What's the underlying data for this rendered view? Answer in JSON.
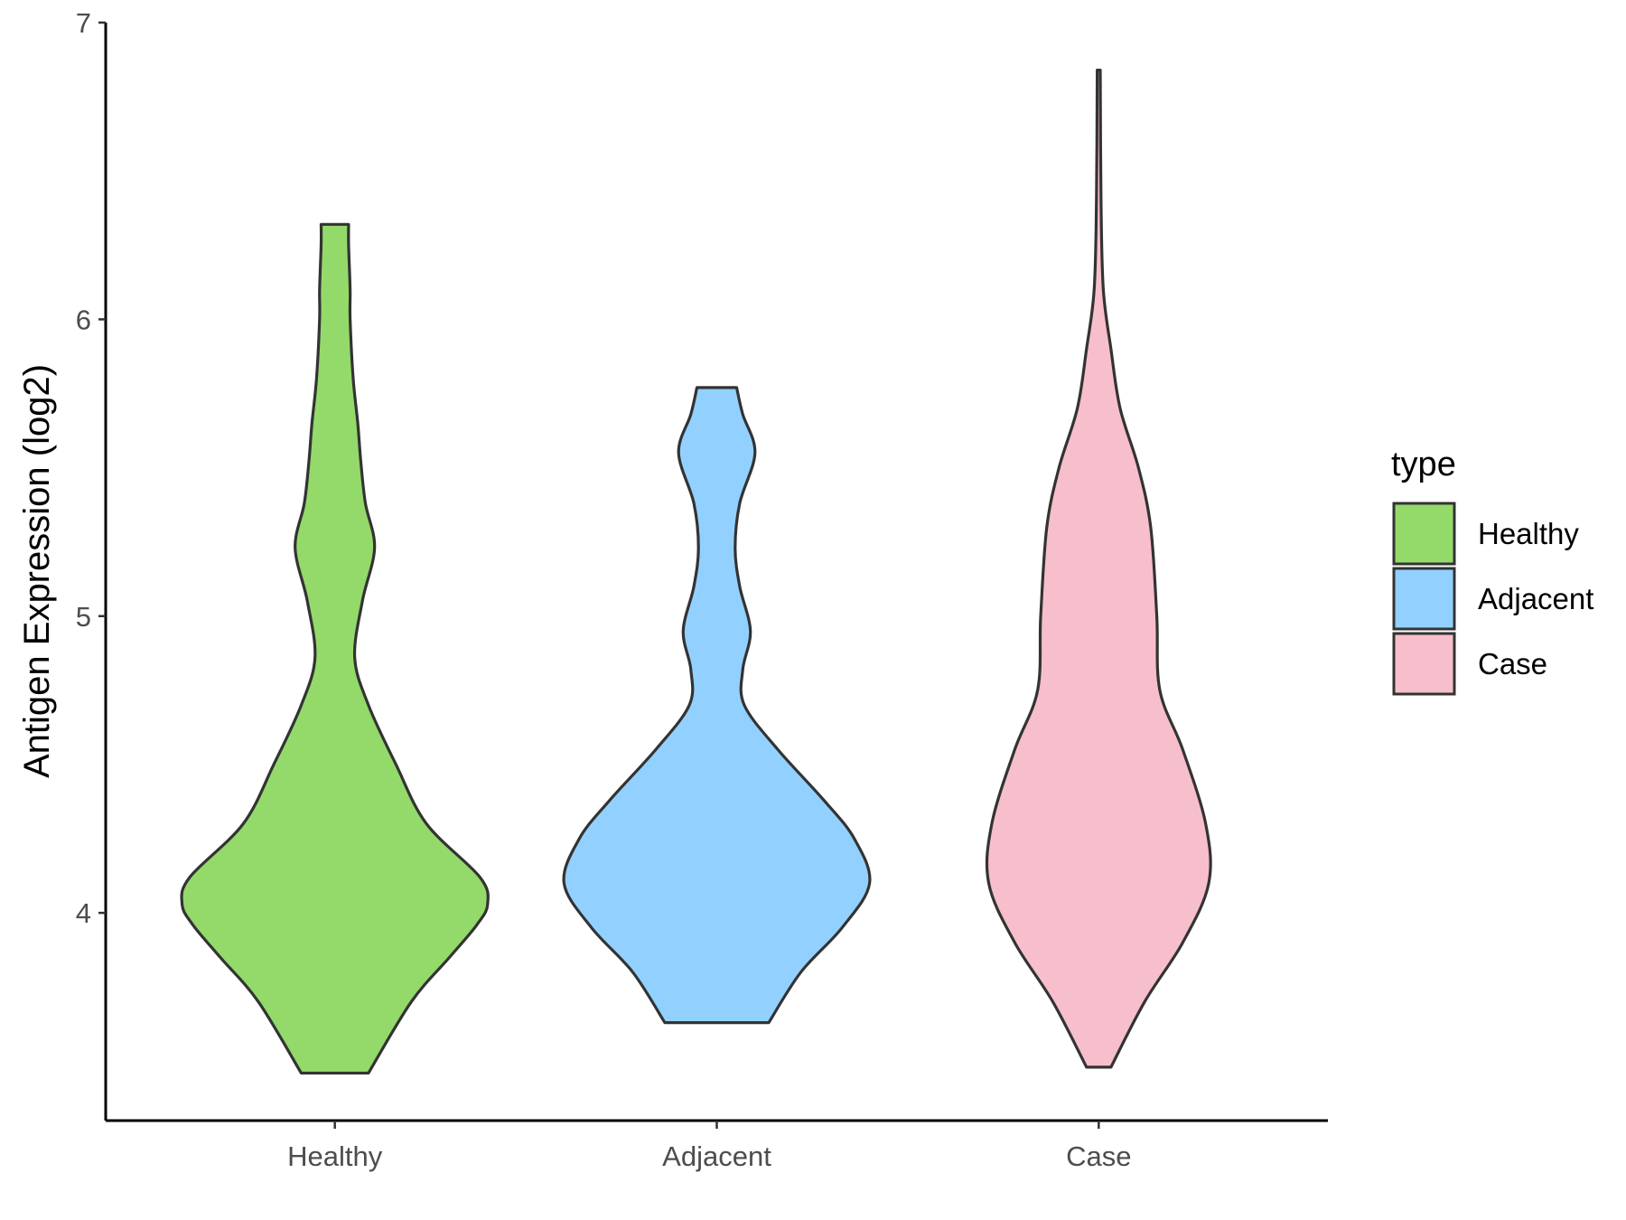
{
  "chart_data": {
    "type": "violin",
    "title": "",
    "xlabel": "",
    "ylabel": "Antigen Expression (log2)",
    "ylim": [
      3.3,
      7.0
    ],
    "yticks": [
      4,
      5,
      6,
      7
    ],
    "categories": [
      "Healthy",
      "Adjacent",
      "Case"
    ],
    "grid": false,
    "legend": {
      "title": "type",
      "position": "right",
      "entries": [
        {
          "label": "Healthy",
          "color": "#93DA6A"
        },
        {
          "label": "Adjacent",
          "color": "#92D1FF"
        },
        {
          "label": "Case",
          "color": "#F7BFCB"
        }
      ]
    },
    "series": [
      {
        "name": "Healthy",
        "color": "#93DA6A",
        "min": 3.46,
        "max": 6.32,
        "density": [
          [
            3.46,
            0.22
          ],
          [
            3.7,
            0.5
          ],
          [
            3.85,
            0.75
          ],
          [
            3.96,
            0.93
          ],
          [
            4.03,
            1.0
          ],
          [
            4.12,
            0.95
          ],
          [
            4.3,
            0.6
          ],
          [
            4.5,
            0.4
          ],
          [
            4.7,
            0.22
          ],
          [
            4.86,
            0.13
          ],
          [
            5.05,
            0.18
          ],
          [
            5.23,
            0.26
          ],
          [
            5.38,
            0.2
          ],
          [
            5.52,
            0.17
          ],
          [
            5.65,
            0.15
          ],
          [
            5.8,
            0.12
          ],
          [
            6.0,
            0.1
          ],
          [
            6.1,
            0.1
          ],
          [
            6.25,
            0.09
          ],
          [
            6.32,
            0.09
          ]
        ]
      },
      {
        "name": "Adjacent",
        "color": "#92D1FF",
        "min": 3.63,
        "max": 5.77,
        "density": [
          [
            3.63,
            0.34
          ],
          [
            3.8,
            0.55
          ],
          [
            3.95,
            0.82
          ],
          [
            4.1,
            1.0
          ],
          [
            4.25,
            0.9
          ],
          [
            4.38,
            0.7
          ],
          [
            4.55,
            0.4
          ],
          [
            4.7,
            0.18
          ],
          [
            4.82,
            0.17
          ],
          [
            4.95,
            0.22
          ],
          [
            5.1,
            0.15
          ],
          [
            5.23,
            0.12
          ],
          [
            5.38,
            0.15
          ],
          [
            5.55,
            0.25
          ],
          [
            5.68,
            0.17
          ],
          [
            5.77,
            0.13
          ]
        ]
      },
      {
        "name": "Case",
        "color": "#F7BFCB",
        "min": 3.48,
        "max": 6.84,
        "density": [
          [
            3.48,
            0.08
          ],
          [
            3.7,
            0.3
          ],
          [
            3.9,
            0.55
          ],
          [
            4.1,
            0.72
          ],
          [
            4.3,
            0.7
          ],
          [
            4.55,
            0.55
          ],
          [
            4.75,
            0.4
          ],
          [
            5.0,
            0.38
          ],
          [
            5.3,
            0.34
          ],
          [
            5.5,
            0.26
          ],
          [
            5.7,
            0.14
          ],
          [
            5.9,
            0.08
          ],
          [
            6.1,
            0.03
          ],
          [
            6.4,
            0.015
          ],
          [
            6.84,
            0.01
          ]
        ]
      }
    ]
  }
}
